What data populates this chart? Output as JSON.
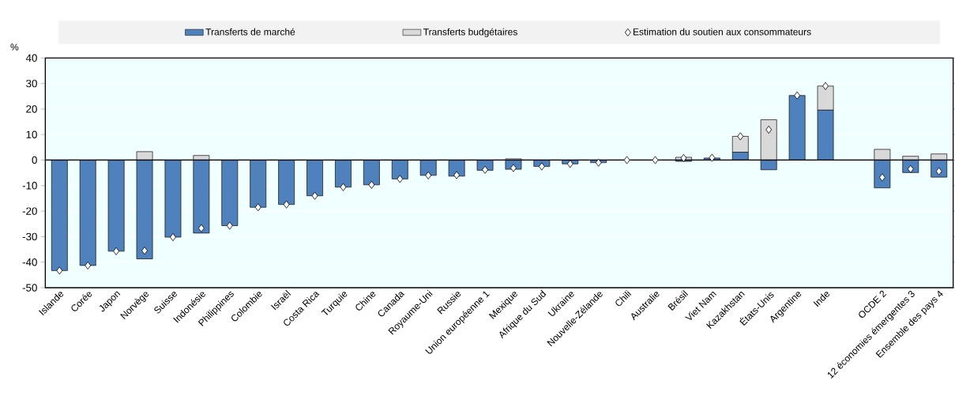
{
  "chart_data": {
    "type": "bar",
    "stacked": true,
    "ylabel": "%",
    "categories": [
      "Islande",
      "Corée",
      "Japon",
      "Norvège",
      "Suisse",
      "Indonésie",
      "Philippines",
      "Colombie",
      "Israël",
      "Costa Rica",
      "Turquie",
      "Chine",
      "Canada",
      "Royaume-Uni",
      "Russie",
      "Union européenne 1",
      "Mexique",
      "Afrique du Sud",
      "Ukraine",
      "Nouvelle-Zélande",
      "Chili",
      "Australie",
      "Brésil",
      "Viet Nam",
      "Kazakhstan",
      "États-Unis",
      "Argentine",
      "Inde",
      null,
      "OCDE 2",
      "12 économies émergentes 3",
      "Ensemble des pays 4"
    ],
    "series": [
      {
        "name": "Transferts de marché",
        "color": "#4f81bd",
        "values": [
          -43.3,
          -41.3,
          -35.7,
          -38.7,
          -30.2,
          -28.6,
          -25.7,
          -18.5,
          -17.4,
          -14.0,
          -10.6,
          -9.7,
          -7.4,
          -6.0,
          -6.3,
          -4.0,
          -3.6,
          -2.5,
          -1.5,
          -1.0,
          0,
          0,
          -0.5,
          0.8,
          3.1,
          -3.8,
          25.3,
          19.6,
          null,
          -10.9,
          -4.9,
          -6.7
        ]
      },
      {
        "name": "Transferts budgétaires",
        "color": "#d9d9d9",
        "values": [
          0,
          0,
          0,
          3.3,
          0,
          1.8,
          0,
          0,
          0,
          0,
          0,
          0,
          0,
          0,
          0,
          0,
          0.5,
          0,
          0,
          0,
          0,
          0,
          1.1,
          0,
          6.2,
          15.8,
          0,
          9.4,
          null,
          4.2,
          1.5,
          2.4
        ]
      },
      {
        "name": "Estimation du soutien aux consommateurs",
        "type": "scatter",
        "marker": "diamond",
        "color": "#ffffff",
        "values": [
          -43.3,
          -41.3,
          -35.7,
          -35.5,
          -30.2,
          -26.7,
          -25.7,
          -18.5,
          -17.4,
          -14.0,
          -10.6,
          -9.7,
          -7.4,
          -6.0,
          -5.9,
          -3.8,
          -3.1,
          -2.5,
          -1.5,
          -1.0,
          0,
          0,
          0.8,
          0.9,
          9.3,
          11.9,
          25.3,
          29.0,
          null,
          -6.8,
          -3.5,
          -4.4
        ]
      }
    ],
    "ylim": [
      -50,
      40
    ],
    "yticks": [
      -50,
      -40,
      -30,
      -20,
      -10,
      0,
      10,
      20,
      30,
      40
    ],
    "grid": "y",
    "legend": "top",
    "ref_lines": [
      {
        "axis": "y",
        "value": 0,
        "color": "#000000"
      }
    ]
  }
}
